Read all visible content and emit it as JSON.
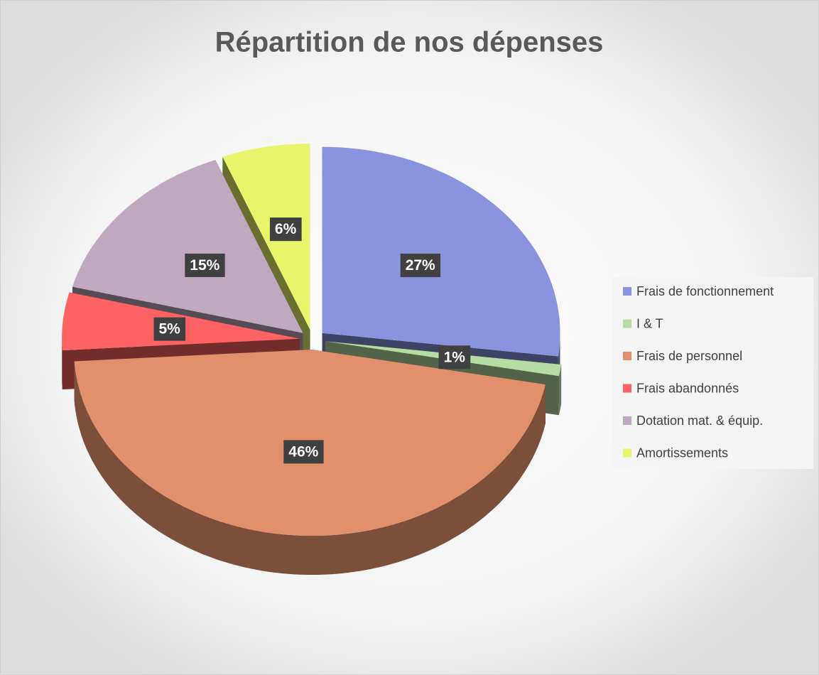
{
  "chart_data": {
    "type": "pie3d",
    "title": "Répartition de nos dépenses",
    "categories": [
      "Frais de fonctionnement",
      "I & T",
      "Frais de personnel",
      "Frais abandonnés",
      "Dotation mat. & équip.",
      "Amortissements"
    ],
    "values": [
      27,
      1,
      46,
      5,
      15,
      6
    ],
    "value_labels": [
      "27%",
      "1%",
      "46%",
      "5%",
      "15%",
      "6%"
    ],
    "colors": [
      "#8a93de",
      "#b6dca3",
      "#e2906b",
      "#ff6262",
      "#c0a9c0",
      "#e6f56a"
    ],
    "legend": "right"
  }
}
